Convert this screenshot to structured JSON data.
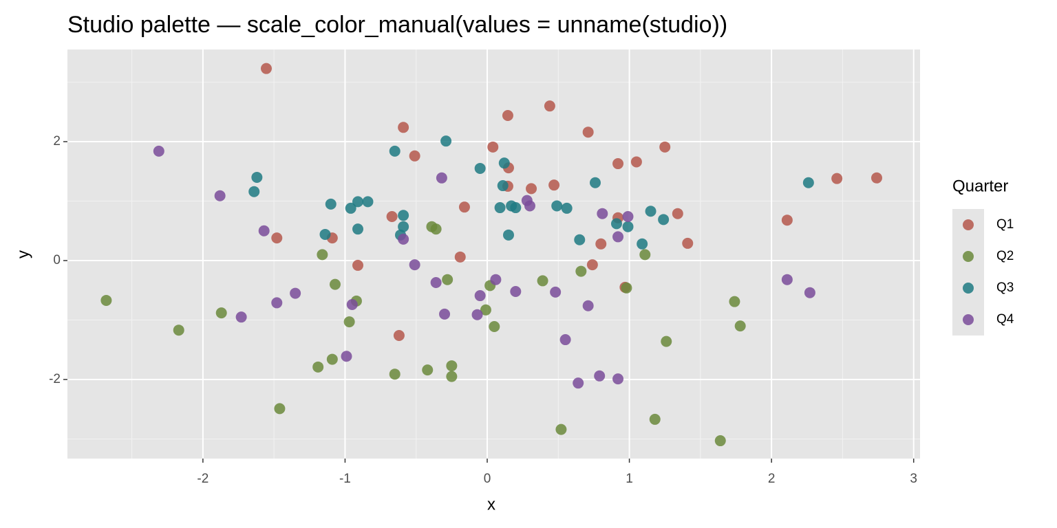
{
  "chart_data": {
    "type": "scatter",
    "title": "Studio palette — scale_color_manual(values = unname(studio))",
    "x_label": "x",
    "y_label": "y",
    "legend_title": "Quarter",
    "xlim": [
      -2.953,
      3.045
    ],
    "ylim": [
      -3.33,
      3.55
    ],
    "xticks": [
      -2,
      -1,
      0,
      1,
      2,
      3
    ],
    "yticks": [
      -2,
      0,
      2
    ],
    "xminor": [
      -2.5,
      -1.5,
      -0.5,
      0.5,
      1.5,
      2.5
    ],
    "yminor": [
      -3,
      -1,
      1,
      3
    ],
    "grid": true,
    "legend": "right",
    "series": [
      {
        "name": "Q1",
        "color": "#b5584c",
        "x": [
          -1.554,
          0.145,
          0.44,
          -0.59,
          0.71,
          0.04,
          1.25,
          -0.51,
          0.92,
          1.05,
          0.15,
          0.145,
          0.31,
          0.47,
          2.46,
          2.74,
          -0.16,
          -0.67,
          0.92,
          1.34,
          -1.48,
          -1.09,
          0.8,
          1.41,
          2.11,
          -0.91,
          -0.19,
          0.74,
          0.97,
          -0.62
        ],
        "y": [
          3.23,
          2.44,
          2.6,
          2.24,
          2.16,
          1.91,
          1.91,
          1.76,
          1.63,
          1.66,
          1.56,
          1.25,
          1.21,
          1.27,
          1.38,
          1.39,
          0.9,
          0.74,
          0.72,
          0.79,
          0.38,
          0.38,
          0.28,
          0.29,
          0.68,
          -0.08,
          0.06,
          -0.07,
          -0.45,
          -1.26
        ]
      },
      {
        "name": "Q2",
        "color": "#6b8a3c",
        "x": [
          -2.68,
          -2.17,
          -1.87,
          -1.46,
          -1.16,
          -1.07,
          -0.92,
          -0.97,
          -1.19,
          -1.09,
          -0.65,
          -0.39,
          -0.36,
          -0.28,
          -0.42,
          -0.25,
          -0.25,
          0.02,
          -0.01,
          0.05,
          0.39,
          0.66,
          0.98,
          1.11,
          0.52,
          1.26,
          1.18,
          1.74,
          1.78,
          1.64
        ],
        "y": [
          -0.67,
          -1.17,
          -0.88,
          -2.49,
          0.1,
          -0.4,
          -0.68,
          -1.03,
          -1.79,
          -1.66,
          -1.91,
          0.57,
          0.53,
          -0.32,
          -1.84,
          -1.77,
          -1.95,
          -0.42,
          -0.83,
          -1.11,
          -0.34,
          -0.18,
          -0.46,
          0.1,
          -2.84,
          -1.36,
          -2.67,
          -0.69,
          -1.1,
          -3.03
        ]
      },
      {
        "name": "Q3",
        "color": "#1f7a82",
        "x": [
          -0.65,
          -0.29,
          -1.62,
          -1.64,
          -1.1,
          -0.96,
          -0.91,
          -0.84,
          -1.14,
          -0.91,
          -0.59,
          -0.59,
          -0.61,
          -0.05,
          0.12,
          0.11,
          0.09,
          0.17,
          0.2,
          0.15,
          0.49,
          0.56,
          0.76,
          0.65,
          0.91,
          0.99,
          1.15,
          1.24,
          1.09,
          2.26
        ],
        "y": [
          1.84,
          2.01,
          1.4,
          1.16,
          0.95,
          0.88,
          0.99,
          0.99,
          0.44,
          0.53,
          0.76,
          0.57,
          0.43,
          1.55,
          1.64,
          1.26,
          0.89,
          0.92,
          0.89,
          0.43,
          0.92,
          0.88,
          1.31,
          0.35,
          0.62,
          0.57,
          0.83,
          0.69,
          0.28,
          1.31
        ]
      },
      {
        "name": "Q4",
        "color": "#7a4c9a",
        "x": [
          -2.31,
          -1.88,
          -1.57,
          -1.48,
          -1.35,
          -1.73,
          -0.95,
          -0.99,
          -0.59,
          -0.51,
          -0.32,
          -0.36,
          -0.3,
          -0.05,
          -0.07,
          0.06,
          0.2,
          0.28,
          0.3,
          0.48,
          0.55,
          0.71,
          0.64,
          0.81,
          0.92,
          0.99,
          0.79,
          0.92,
          2.11,
          2.27
        ],
        "y": [
          1.84,
          1.09,
          0.5,
          -0.71,
          -0.55,
          -0.95,
          -0.74,
          -1.61,
          0.36,
          -0.07,
          1.39,
          -0.37,
          -0.9,
          -0.59,
          -0.91,
          -0.32,
          -0.52,
          1.01,
          0.92,
          -0.53,
          -1.33,
          -0.76,
          -2.06,
          0.79,
          0.4,
          0.74,
          -1.94,
          -1.99,
          -0.32,
          -0.54
        ]
      }
    ]
  }
}
